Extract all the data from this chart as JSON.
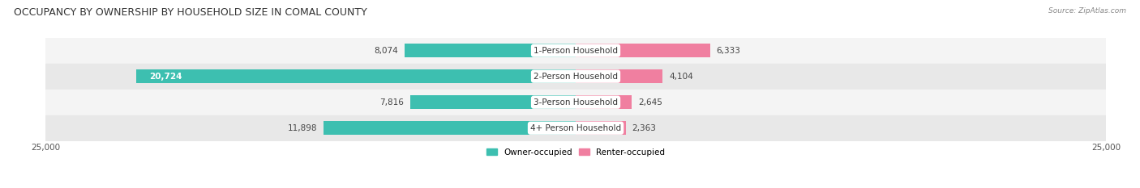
{
  "title": "OCCUPANCY BY OWNERSHIP BY HOUSEHOLD SIZE IN COMAL COUNTY",
  "source": "Source: ZipAtlas.com",
  "categories": [
    "1-Person Household",
    "2-Person Household",
    "3-Person Household",
    "4+ Person Household"
  ],
  "owner_values": [
    8074,
    20724,
    7816,
    11898
  ],
  "renter_values": [
    6333,
    4104,
    2645,
    2363
  ],
  "max_val": 25000,
  "owner_color": "#3DBFB0",
  "renter_color": "#F07FA0",
  "row_bg_colors": [
    "#F4F4F4",
    "#E8E8E8"
  ],
  "title_fontsize": 9,
  "tick_fontsize": 7.5,
  "bar_height": 0.52,
  "figsize": [
    14.06,
    2.33
  ]
}
